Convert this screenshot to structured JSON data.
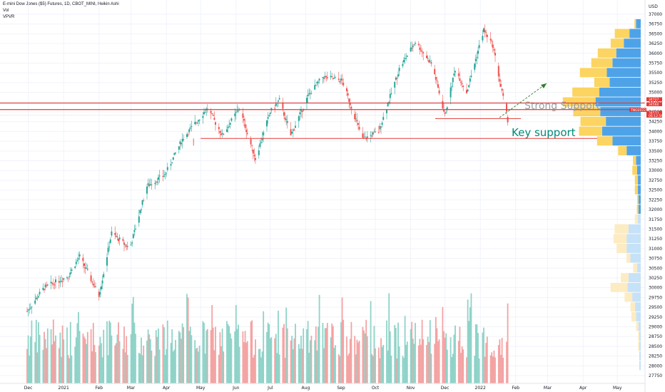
{
  "header": {
    "title": "E-mini Dow Jones ($5) Futures, 1D, CBOT_MINI, Heikin Ashi",
    "indicator1": "Vol",
    "indicator2": "VPVR"
  },
  "colors": {
    "up": "#26a69a",
    "down": "#ef5350",
    "vol_up": "#8fd3c8",
    "vol_down": "#f4a3a3",
    "vpvr_up": "#4ea3e8",
    "vpvr_down": "#fcd461",
    "vpvr_up_light": "#c6e2f8",
    "vpvr_down_light": "#fdebc2",
    "support": "#e53935",
    "arrow": "#2e7d32"
  },
  "chart_data": {
    "type": "candlestick",
    "title": "E-mini Dow Jones ($5) Futures, 1D, CBOT_MINI, Heikin Ashi",
    "currency_label": "USD",
    "y_ticks": [
      27750,
      28000,
      28250,
      28500,
      28750,
      29000,
      29250,
      29500,
      29750,
      30000,
      30250,
      30500,
      30750,
      31000,
      31250,
      31500,
      31750,
      32000,
      32250,
      32500,
      32750,
      33000,
      33250,
      33500,
      33750,
      34000,
      34250,
      34500,
      34750,
      35000,
      35250,
      35500,
      35750,
      36000,
      36250,
      36500,
      36750,
      37000
    ],
    "ylim": [
      27600,
      37100
    ],
    "x_ticks": [
      "Dec",
      "2021",
      "Feb",
      "Mar",
      "Apr",
      "May",
      "Jun",
      "Jul",
      "Aug",
      "Sep",
      "Oct",
      "Nov",
      "Dec",
      "2022",
      "Feb",
      "Mar",
      "Apr",
      "May"
    ],
    "price_path": [
      [
        "2020-11-30",
        29400
      ],
      [
        "2020-12-15",
        30000
      ],
      [
        "2021-01-05",
        30300
      ],
      [
        "2021-01-15",
        30800
      ],
      [
        "2021-02-01",
        29800
      ],
      [
        "2021-02-12",
        31400
      ],
      [
        "2021-02-28",
        31000
      ],
      [
        "2021-03-15",
        32600
      ],
      [
        "2021-03-31",
        32900
      ],
      [
        "2021-04-15",
        33800
      ],
      [
        "2021-05-07",
        34600
      ],
      [
        "2021-05-20",
        33900
      ],
      [
        "2021-06-04",
        34600
      ],
      [
        "2021-06-18",
        33300
      ],
      [
        "2021-07-01",
        34500
      ],
      [
        "2021-07-09",
        34800
      ],
      [
        "2021-07-19",
        33900
      ],
      [
        "2021-08-03",
        34900
      ],
      [
        "2021-08-16",
        35400
      ],
      [
        "2021-09-02",
        35300
      ],
      [
        "2021-09-20",
        33800
      ],
      [
        "2021-10-04",
        34000
      ],
      [
        "2021-10-22",
        35600
      ],
      [
        "2021-11-05",
        36300
      ],
      [
        "2021-11-20",
        35700
      ],
      [
        "2021-12-01",
        34400
      ],
      [
        "2021-12-10",
        35600
      ],
      [
        "2021-12-20",
        35000
      ],
      [
        "2022-01-04",
        36600
      ],
      [
        "2022-01-12",
        36200
      ],
      [
        "2022-01-20",
        35000
      ],
      [
        "2022-01-25",
        34300
      ]
    ],
    "price_labels": [
      {
        "label": "34727",
        "color": "#e53935"
      },
      {
        "label": "34560",
        "color": "#e53935"
      },
      {
        "label": "TNO2022",
        "color": "#e53935"
      },
      {
        "label": "34533",
        "color": "#e53935"
      },
      {
        "label": "06:12:56",
        "color": "#e53935"
      }
    ],
    "levels": [
      {
        "name": "resistance-1",
        "value": 34727
      },
      {
        "name": "resistance-2",
        "value": 34560
      },
      {
        "name": "key-support",
        "value": 33820
      }
    ],
    "vpvr": [
      {
        "price": 36750,
        "up": 0.1,
        "down": 0.04
      },
      {
        "price": 36500,
        "up": 0.24,
        "down": 0.38
      },
      {
        "price": 36250,
        "up": 0.36,
        "down": 0.34
      },
      {
        "price": 36000,
        "up": 0.52,
        "down": 0.48
      },
      {
        "price": 35750,
        "up": 0.6,
        "down": 0.55
      },
      {
        "price": 35500,
        "up": 0.72,
        "down": 0.7
      },
      {
        "price": 35250,
        "up": 0.66,
        "down": 0.4
      },
      {
        "price": 35000,
        "up": 0.88,
        "down": 0.7
      },
      {
        "price": 34750,
        "up": 0.96,
        "down": 0.85
      },
      {
        "price": 34500,
        "up": 0.86,
        "down": 0.7
      },
      {
        "price": 34250,
        "up": 0.74,
        "down": 0.66
      },
      {
        "price": 34000,
        "up": 0.82,
        "down": 0.6
      },
      {
        "price": 33750,
        "up": 0.6,
        "down": 0.4
      },
      {
        "price": 33500,
        "up": 0.3,
        "down": 0.22
      },
      {
        "price": 33250,
        "up": 0.1,
        "down": 0.08
      },
      {
        "price": 33000,
        "up": 0.08,
        "down": 0.12
      },
      {
        "price": 32750,
        "up": 0.06,
        "down": 0.08
      },
      {
        "price": 32500,
        "up": 0.06,
        "down": 0.08
      },
      {
        "price": 32250,
        "up": 0.05,
        "down": 0.03
      },
      {
        "price": 32000,
        "up": 0.05,
        "down": 0.04
      },
      {
        "price": 31750,
        "up": 0.06,
        "down": 0.08
      },
      {
        "price": 31500,
        "up": 0.26,
        "down": 0.36
      },
      {
        "price": 31250,
        "up": 0.3,
        "down": 0.34
      },
      {
        "price": 31000,
        "up": 0.3,
        "down": 0.26
      },
      {
        "price": 30750,
        "up": 0.22,
        "down": 0.1
      },
      {
        "price": 30500,
        "up": 0.08,
        "down": 0.1
      },
      {
        "price": 30250,
        "up": 0.26,
        "down": 0.2
      },
      {
        "price": 30000,
        "up": 0.28,
        "down": 0.44
      },
      {
        "price": 29750,
        "up": 0.18,
        "down": 0.2
      },
      {
        "price": 29500,
        "up": 0.12,
        "down": 0.12
      },
      {
        "price": 29250,
        "up": 0.1,
        "down": 0.12
      },
      {
        "price": 29000,
        "up": 0.05,
        "down": 0.06
      },
      {
        "price": 28750,
        "up": 0.03,
        "down": 0.03
      },
      {
        "price": 28500,
        "up": 0.03,
        "down": 0.03
      },
      {
        "price": 28250,
        "up": 0.03,
        "down": 0.0
      },
      {
        "price": 28000,
        "up": 0.03,
        "down": 0.0
      }
    ]
  },
  "annotations": {
    "strong_support": "Strong Support",
    "key_support": "Key support"
  }
}
